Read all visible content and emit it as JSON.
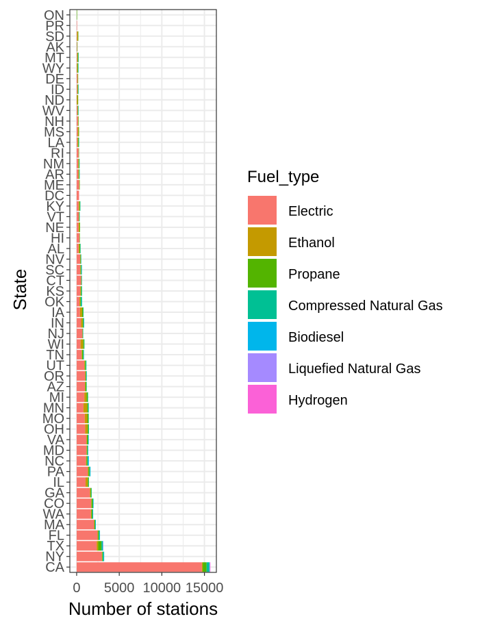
{
  "chart_data": {
    "type": "bar",
    "orientation": "horizontal",
    "stacked": true,
    "xlabel": "Number of stations",
    "ylabel": "State",
    "xlim": [
      -800,
      16400
    ],
    "xticks": [
      0,
      5000,
      10000,
      15000
    ],
    "tick_labels": [
      "0",
      "5000",
      "10000",
      "15000"
    ],
    "grid": true,
    "legend_position": "right",
    "legend_title": "Fuel_type",
    "categories": [
      "ON",
      "PR",
      "SD",
      "AK",
      "MT",
      "WY",
      "DE",
      "ID",
      "ND",
      "WV",
      "NH",
      "MS",
      "LA",
      "RI",
      "NM",
      "AR",
      "ME",
      "DC",
      "KY",
      "VT",
      "NE",
      "HI",
      "AL",
      "NV",
      "SC",
      "CT",
      "KS",
      "OK",
      "IA",
      "IN",
      "NJ",
      "WI",
      "TN",
      "UT",
      "OR",
      "AZ",
      "MI",
      "MN",
      "MO",
      "OH",
      "VA",
      "MD",
      "NC",
      "PA",
      "IL",
      "GA",
      "CO",
      "WA",
      "MA",
      "FL",
      "TX",
      "NY",
      "CA"
    ],
    "series": [
      {
        "name": "Electric",
        "color": "#F8766D",
        "values": [
          0,
          10,
          40,
          50,
          60,
          30,
          100,
          70,
          20,
          90,
          150,
          130,
          110,
          230,
          180,
          200,
          300,
          280,
          230,
          250,
          220,
          330,
          230,
          420,
          420,
          530,
          430,
          330,
          390,
          520,
          680,
          460,
          580,
          900,
          1000,
          970,
          900,
          800,
          950,
          1000,
          1150,
          1150,
          1100,
          1300,
          1050,
          1550,
          1700,
          1680,
          2050,
          2450,
          2350,
          2950,
          14700
        ]
      },
      {
        "name": "Ethanol",
        "color": "#C49A00",
        "values": [
          0,
          0,
          100,
          0,
          60,
          70,
          30,
          60,
          100,
          40,
          30,
          80,
          60,
          0,
          60,
          50,
          10,
          0,
          90,
          20,
          110,
          0,
          90,
          20,
          40,
          10,
          60,
          100,
          250,
          180,
          10,
          290,
          60,
          80,
          30,
          50,
          250,
          420,
          300,
          280,
          60,
          40,
          60,
          80,
          260,
          70,
          60,
          60,
          30,
          60,
          180,
          50,
          100
        ]
      },
      {
        "name": "Propane",
        "color": "#53B400",
        "values": [
          10,
          0,
          60,
          30,
          70,
          70,
          20,
          50,
          60,
          50,
          50,
          70,
          70,
          20,
          60,
          60,
          40,
          0,
          70,
          40,
          70,
          10,
          100,
          60,
          80,
          30,
          70,
          60,
          120,
          100,
          30,
          120,
          140,
          90,
          90,
          110,
          150,
          140,
          130,
          110,
          120,
          90,
          110,
          120,
          90,
          100,
          130,
          110,
          90,
          100,
          380,
          80,
          450
        ]
      },
      {
        "name": "Compressed Natural Gas",
        "color": "#00C094",
        "values": [
          0,
          0,
          0,
          0,
          10,
          20,
          0,
          10,
          0,
          10,
          0,
          0,
          30,
          0,
          20,
          10,
          0,
          0,
          20,
          10,
          0,
          0,
          30,
          10,
          30,
          20,
          70,
          140,
          10,
          30,
          40,
          20,
          30,
          80,
          20,
          40,
          50,
          20,
          30,
          60,
          40,
          30,
          60,
          80,
          50,
          50,
          50,
          40,
          30,
          80,
          150,
          100,
          300
        ]
      },
      {
        "name": "Biodiesel",
        "color": "#00B6EB",
        "values": [
          0,
          0,
          0,
          0,
          0,
          0,
          0,
          0,
          0,
          0,
          0,
          0,
          0,
          0,
          0,
          0,
          0,
          0,
          0,
          0,
          0,
          0,
          0,
          0,
          10,
          0,
          0,
          0,
          0,
          10,
          0,
          0,
          10,
          0,
          10,
          0,
          0,
          10,
          0,
          0,
          10,
          10,
          100,
          10,
          0,
          0,
          10,
          10,
          10,
          10,
          10,
          10,
          50
        ]
      },
      {
        "name": "Liquefied Natural Gas",
        "color": "#A58AFF",
        "values": [
          0,
          0,
          0,
          0,
          0,
          0,
          0,
          0,
          0,
          0,
          0,
          0,
          0,
          0,
          0,
          0,
          0,
          0,
          0,
          0,
          0,
          0,
          0,
          0,
          0,
          0,
          0,
          0,
          0,
          0,
          0,
          0,
          0,
          0,
          0,
          0,
          0,
          0,
          0,
          0,
          0,
          0,
          0,
          0,
          0,
          0,
          0,
          0,
          0,
          0,
          30,
          0,
          50
        ]
      },
      {
        "name": "Hydrogen",
        "color": "#FB61D7",
        "values": [
          0,
          0,
          0,
          0,
          0,
          0,
          0,
          0,
          0,
          0,
          0,
          0,
          0,
          0,
          0,
          0,
          0,
          0,
          0,
          0,
          0,
          0,
          0,
          0,
          0,
          0,
          0,
          0,
          0,
          0,
          0,
          0,
          0,
          0,
          0,
          0,
          0,
          0,
          0,
          0,
          0,
          0,
          0,
          0,
          0,
          0,
          0,
          0,
          0,
          0,
          0,
          0,
          45
        ]
      }
    ]
  }
}
